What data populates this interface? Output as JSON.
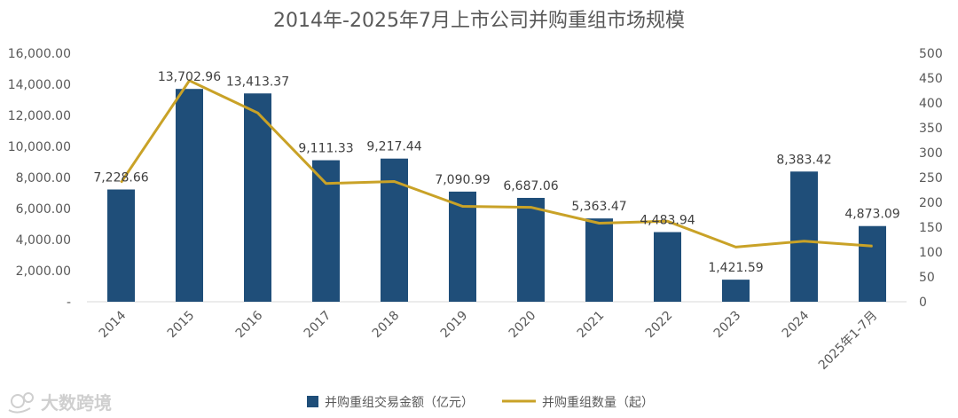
{
  "chart_data": {
    "type": "bar+line",
    "title": "2014年-2025年7月上市公司并购重组市场规模",
    "categories": [
      "2014",
      "2015",
      "2016",
      "2017",
      "2018",
      "2019",
      "2020",
      "2021",
      "2022",
      "2023",
      "2024",
      "2025年1-7月"
    ],
    "series": [
      {
        "name": "并购重组交易金额（亿元）",
        "type": "bar",
        "axis": "left",
        "color": "#1f4e79",
        "values": [
          7228.66,
          13702.96,
          13413.37,
          9111.33,
          9217.44,
          7090.99,
          6687.06,
          5363.47,
          4483.94,
          1421.59,
          8383.42,
          4873.09
        ],
        "labels": [
          "7,228.66",
          "13,702.96",
          "13,413.37",
          "9,111.33",
          "9,217.44",
          "7,090.99",
          "6,687.06",
          "5,363.47",
          "4,483.94",
          "1,421.59",
          "8,383.42",
          "4,873.09"
        ]
      },
      {
        "name": "并购重组数量（起）",
        "type": "line",
        "axis": "right",
        "color": "#c9a227",
        "values": [
          240,
          445,
          380,
          238,
          242,
          192,
          190,
          158,
          162,
          110,
          122,
          112
        ]
      }
    ],
    "y_left": {
      "min": 0,
      "max": 16000,
      "ticks": [
        "-",
        "2,000.00",
        "4,000.00",
        "6,000.00",
        "8,000.00",
        "10,000.00",
        "12,000.00",
        "14,000.00",
        "16,000.00"
      ]
    },
    "y_right": {
      "min": 0,
      "max": 500,
      "ticks": [
        "0",
        "50",
        "100",
        "150",
        "200",
        "250",
        "300",
        "350",
        "400",
        "450",
        "500"
      ]
    },
    "legend_position": "bottom-center"
  },
  "watermark": {
    "text": "大数跨境",
    "icon": "brand-logo-icon"
  }
}
